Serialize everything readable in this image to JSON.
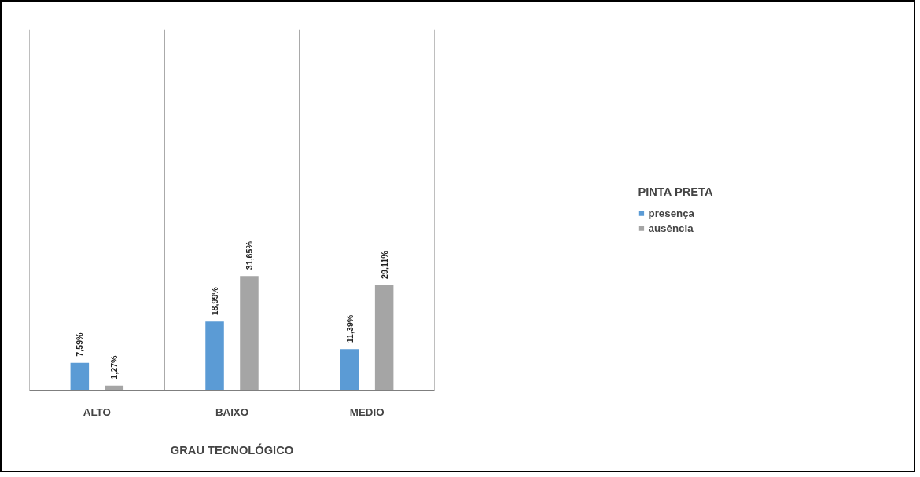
{
  "chart_data": {
    "type": "bar",
    "xlabel": "GRAU TECNOLÓGICO",
    "legend_title": "PINTA PRETA",
    "categories": [
      "ALTO",
      "BAIXO",
      "MEDIO"
    ],
    "series": [
      {
        "name": "presença",
        "color": "#5b9bd5",
        "values": [
          7.59,
          18.99,
          11.39
        ],
        "value_labels": [
          "7,59%",
          "18,99%",
          "11,39%"
        ]
      },
      {
        "name": "ausência",
        "color": "#a5a5a5",
        "values": [
          1.27,
          31.65,
          29.11
        ],
        "value_labels": [
          "1,27%",
          "31,65%",
          "29,11%"
        ]
      }
    ],
    "relative": false,
    "ylim": [
      0,
      100
    ],
    "tick_labels": "x",
    "grid": false,
    "legend": "right"
  }
}
